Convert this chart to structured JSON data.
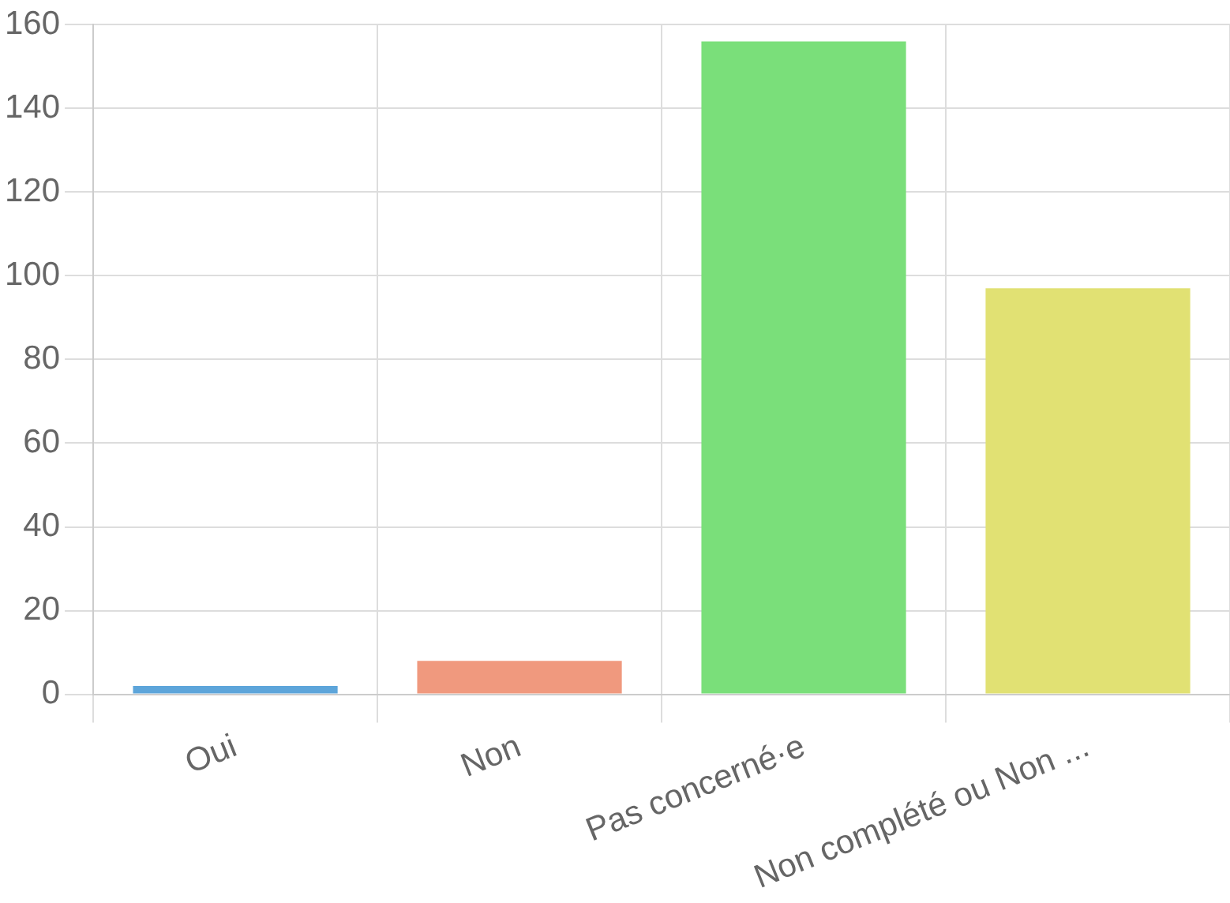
{
  "chart_data": {
    "type": "bar",
    "categories": [
      "Oui",
      "Non",
      "Pas concerné·e",
      "Non complété ou Non ..."
    ],
    "values": [
      2,
      8,
      156,
      97
    ],
    "colors": [
      "#5da5da",
      "#f0997e",
      "#7adf7a",
      "#e1e173"
    ],
    "ylim": [
      0,
      160
    ],
    "yticks": [
      0,
      20,
      40,
      60,
      80,
      100,
      120,
      140,
      160
    ],
    "grid": true,
    "legend": false
  }
}
